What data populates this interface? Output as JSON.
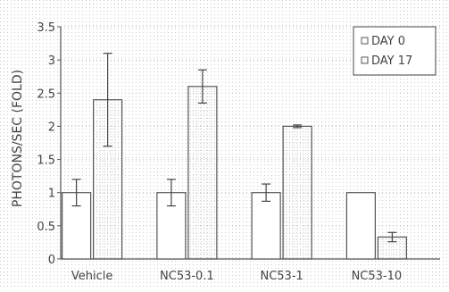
{
  "chart_data": {
    "type": "bar",
    "title": "",
    "xlabel": "",
    "ylabel": "PHOTONS/SEC (FOLD)",
    "ylim": [
      0,
      3.5
    ],
    "yticks": [
      "0",
      "0.5",
      "1",
      "1.5",
      "2",
      "2.5",
      "3",
      "3.5"
    ],
    "grid": true,
    "legend_position": "top-right",
    "categories": [
      "Vehicle",
      "NC53-0.1",
      "NC53-1",
      "NC53-10"
    ],
    "series": [
      {
        "name": "DAY 0",
        "values": [
          1.0,
          1.0,
          1.0,
          1.0
        ],
        "errors": [
          0.2,
          0.2,
          0.13,
          0.0
        ]
      },
      {
        "name": "DAY 17",
        "values": [
          2.4,
          2.6,
          2.0,
          0.33
        ],
        "errors": [
          0.7,
          0.25,
          0.02,
          0.07
        ]
      }
    ]
  }
}
